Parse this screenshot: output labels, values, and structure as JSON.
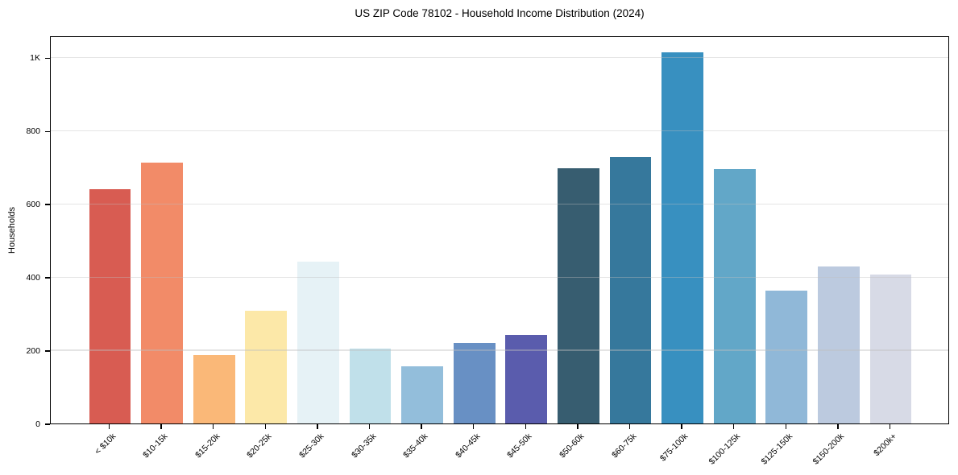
{
  "chart_data": {
    "type": "bar",
    "title": "US ZIP Code 78102 - Household Income Distribution (2024)",
    "xlabel": "",
    "ylabel": "Households",
    "categories": [
      "< $10k",
      "$10-15k",
      "$15-20k",
      "$20-25k",
      "$25-30k",
      "$30-35k",
      "$35-40k",
      "$40-45k",
      "$45-50k",
      "$50-60k",
      "$60-75k",
      "$75-100k",
      "$100-125k",
      "$125-150k",
      "$150-200k",
      "$200k+"
    ],
    "values": [
      640,
      712,
      186,
      307,
      443,
      205,
      157,
      219,
      243,
      697,
      729,
      1013,
      694,
      363,
      429,
      407
    ],
    "bar_colors": [
      "#d85c52",
      "#f28b68",
      "#fab878",
      "#fce8a8",
      "#e6f2f6",
      "#c0e0ea",
      "#93bedb",
      "#6890c4",
      "#5a5cad",
      "#375d70",
      "#36789c",
      "#3890c0",
      "#62a7c8",
      "#90b8d8",
      "#bccadf",
      "#d7dae6"
    ],
    "ytick_values": [
      0,
      200,
      400,
      600,
      800,
      1000
    ],
    "ytick_labels": [
      "0",
      "200",
      "400",
      "600",
      "800",
      "1K"
    ],
    "ylim": [
      0,
      1060
    ],
    "grid": "horizontal",
    "legend": "none",
    "xtick_rotation_deg": 45
  }
}
